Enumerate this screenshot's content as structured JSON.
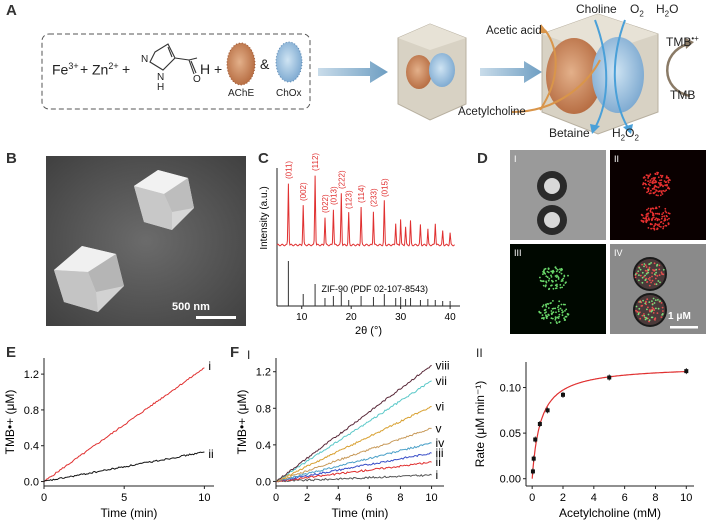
{
  "panel_letters": {
    "A": "A",
    "B": "B",
    "C": "C",
    "D": "D",
    "E": "E",
    "F": "F"
  },
  "panel_a": {
    "reagents": [
      "Fe",
      "Zn",
      "+",
      "+",
      "+",
      "H",
      "&"
    ],
    "fe": "Fe",
    "fe_sup": "3+",
    "zn": "Zn",
    "zn_sup": "2+",
    "ache": "AChE",
    "chox": "ChOx",
    "acetic_acid": "Acetic acid",
    "choline": "Choline",
    "o2": "O",
    "o2_sub": "2",
    "h2o": "H",
    "h2o_sub": "2",
    "h2o_tail": "O",
    "tmb_ox": "TMB",
    "tmb_ox_sup": "•+",
    "tmb": "TMB",
    "acetylcholine": "Acetylcholine",
    "betaine": "Betaine",
    "h2o2": "H",
    "h2o2_sub1": "2",
    "h2o2_mid": "O",
    "h2o2_sub2": "2",
    "nh": "N",
    "nh2": "N",
    "hlabel": "H",
    "o": "O"
  },
  "panel_b": {
    "scale_bar": "500 nm"
  },
  "panel_c": {
    "ylabel": "Intensity (a.u.)",
    "xlabel": "2θ (°)",
    "xticks": [
      "10",
      "20",
      "30",
      "40"
    ],
    "reference": "ZIF-90 (PDF 02-107-8543)",
    "peaks": [
      {
        "label": "(011)",
        "x": 7.3
      },
      {
        "label": "(002)",
        "x": 10.3
      },
      {
        "label": "(112)",
        "x": 12.7
      },
      {
        "label": "(022)",
        "x": 14.7
      },
      {
        "label": "(013)",
        "x": 16.4
      },
      {
        "label": "(222)",
        "x": 18.0
      },
      {
        "label": "(123)",
        "x": 19.5
      },
      {
        "label": "(114)",
        "x": 22.0
      },
      {
        "label": "(233)",
        "x": 24.5
      },
      {
        "label": "(015)",
        "x": 26.7
      }
    ],
    "colors": {
      "pattern": "#e03030",
      "reference": "#333333"
    }
  },
  "panel_d": {
    "labels": [
      "I",
      "II",
      "III",
      "IV"
    ],
    "scale_bar": "1 μM"
  },
  "chart_data": [
    {
      "type": "line",
      "panel": "E",
      "ylabel": "TMB•+ (μM)",
      "xlabel": "Time (min)",
      "xlim": [
        0,
        10.6
      ],
      "ylim": [
        -0.05,
        1.38
      ],
      "xticks": [
        "0",
        "5",
        "10"
      ],
      "yticks": [
        "0.0",
        "0.4",
        "0.8",
        "1.2"
      ],
      "x": [
        0,
        10
      ],
      "series": [
        {
          "name": "i",
          "values": [
            0,
            1.27
          ],
          "color": "#e03030"
        },
        {
          "name": "ii",
          "values": [
            0,
            0.33
          ],
          "color": "#111111"
        }
      ]
    },
    {
      "type": "line",
      "panel": "F I",
      "ylabel": "TMB•+ (μM)",
      "xlabel": "Time (min)",
      "xlim": [
        0,
        10.8
      ],
      "ylim": [
        -0.05,
        1.35
      ],
      "xticks": [
        "0",
        "2",
        "4",
        "6",
        "8",
        "10"
      ],
      "yticks": [
        "0.0",
        "0.4",
        "0.8",
        "1.2"
      ],
      "x": [
        0,
        10
      ],
      "series": [
        {
          "name": "i",
          "values": [
            0,
            0.07
          ],
          "color": "#555555"
        },
        {
          "name": "ii",
          "values": [
            0,
            0.21
          ],
          "color": "#e03030"
        },
        {
          "name": "iii",
          "values": [
            0,
            0.31
          ],
          "color": "#3a4fc8"
        },
        {
          "name": "iv",
          "values": [
            0,
            0.42
          ],
          "color": "#4aa0c8"
        },
        {
          "name": "v",
          "values": [
            0,
            0.58
          ],
          "color": "#c89a5a"
        },
        {
          "name": "vi",
          "values": [
            0,
            0.82
          ],
          "color": "#d8a030"
        },
        {
          "name": "vii",
          "values": [
            0,
            1.1
          ],
          "color": "#5ac8c8"
        },
        {
          "name": "viii",
          "values": [
            0,
            1.27
          ],
          "color": "#5a2a3a"
        }
      ]
    },
    {
      "type": "scatter",
      "panel": "F II",
      "ylabel": "Rate (μM min⁻¹)",
      "xlabel": "Acetylcholine (mM)",
      "xlim": [
        -0.4,
        10.5
      ],
      "ylim": [
        -0.008,
        0.128
      ],
      "xticks": [
        "0",
        "2",
        "4",
        "6",
        "8",
        "10"
      ],
      "yticks": [
        "0.00",
        "0.05",
        "0.10"
      ],
      "x": [
        0.05,
        0.1,
        0.2,
        0.5,
        1.0,
        2.0,
        5.0,
        10.0
      ],
      "series": [
        {
          "name": "",
          "values": [
            0.008,
            0.022,
            0.043,
            0.06,
            0.075,
            0.092,
            0.111,
            0.118
          ],
          "color": "#111111"
        }
      ],
      "fit": {
        "vmax": 0.124,
        "km": 0.55,
        "color": "#e03030"
      }
    }
  ],
  "panel_e_series_labels": [
    "i",
    "ii"
  ],
  "panel_f_roman": "I",
  "panel_f2_roman": "II"
}
